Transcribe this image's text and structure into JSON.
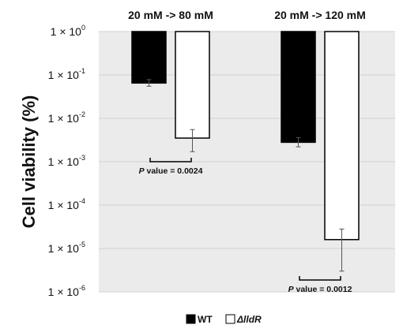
{
  "chart_data": {
    "type": "bar",
    "ylabel": "Cell viability (%)",
    "yscale": "log",
    "ylim": [
      1e-06,
      1
    ],
    "yticks": [
      {
        "exp": "0"
      },
      {
        "exp": "-1"
      },
      {
        "exp": "-2"
      },
      {
        "exp": "-3"
      },
      {
        "exp": "-4"
      },
      {
        "exp": "-5"
      },
      {
        "exp": "-6"
      }
    ],
    "tick_prefix": "1 × 10",
    "categories": [
      "20 mM -> 80 mM",
      "20 mM -> 120 mM"
    ],
    "series": [
      {
        "name": "WT",
        "color": "#000000",
        "values": [
          0.065,
          0.0028
        ],
        "err_low": [
          0.055,
          0.0022
        ],
        "err_high": [
          0.078,
          0.0036
        ]
      },
      {
        "name": "ΔlldR",
        "color": "#ffffff",
        "values": [
          0.0035,
          1.6e-05
        ],
        "err_low": [
          0.0017,
          3e-06
        ],
        "err_high": [
          0.0055,
          2.8e-05
        ]
      }
    ],
    "annotations": [
      {
        "italic": "P",
        "text": " value = 0.0024",
        "category": 0
      },
      {
        "italic": "P",
        "text": " value = 0.0012",
        "category": 1
      }
    ],
    "grid": true,
    "legend_position": "bottom"
  }
}
